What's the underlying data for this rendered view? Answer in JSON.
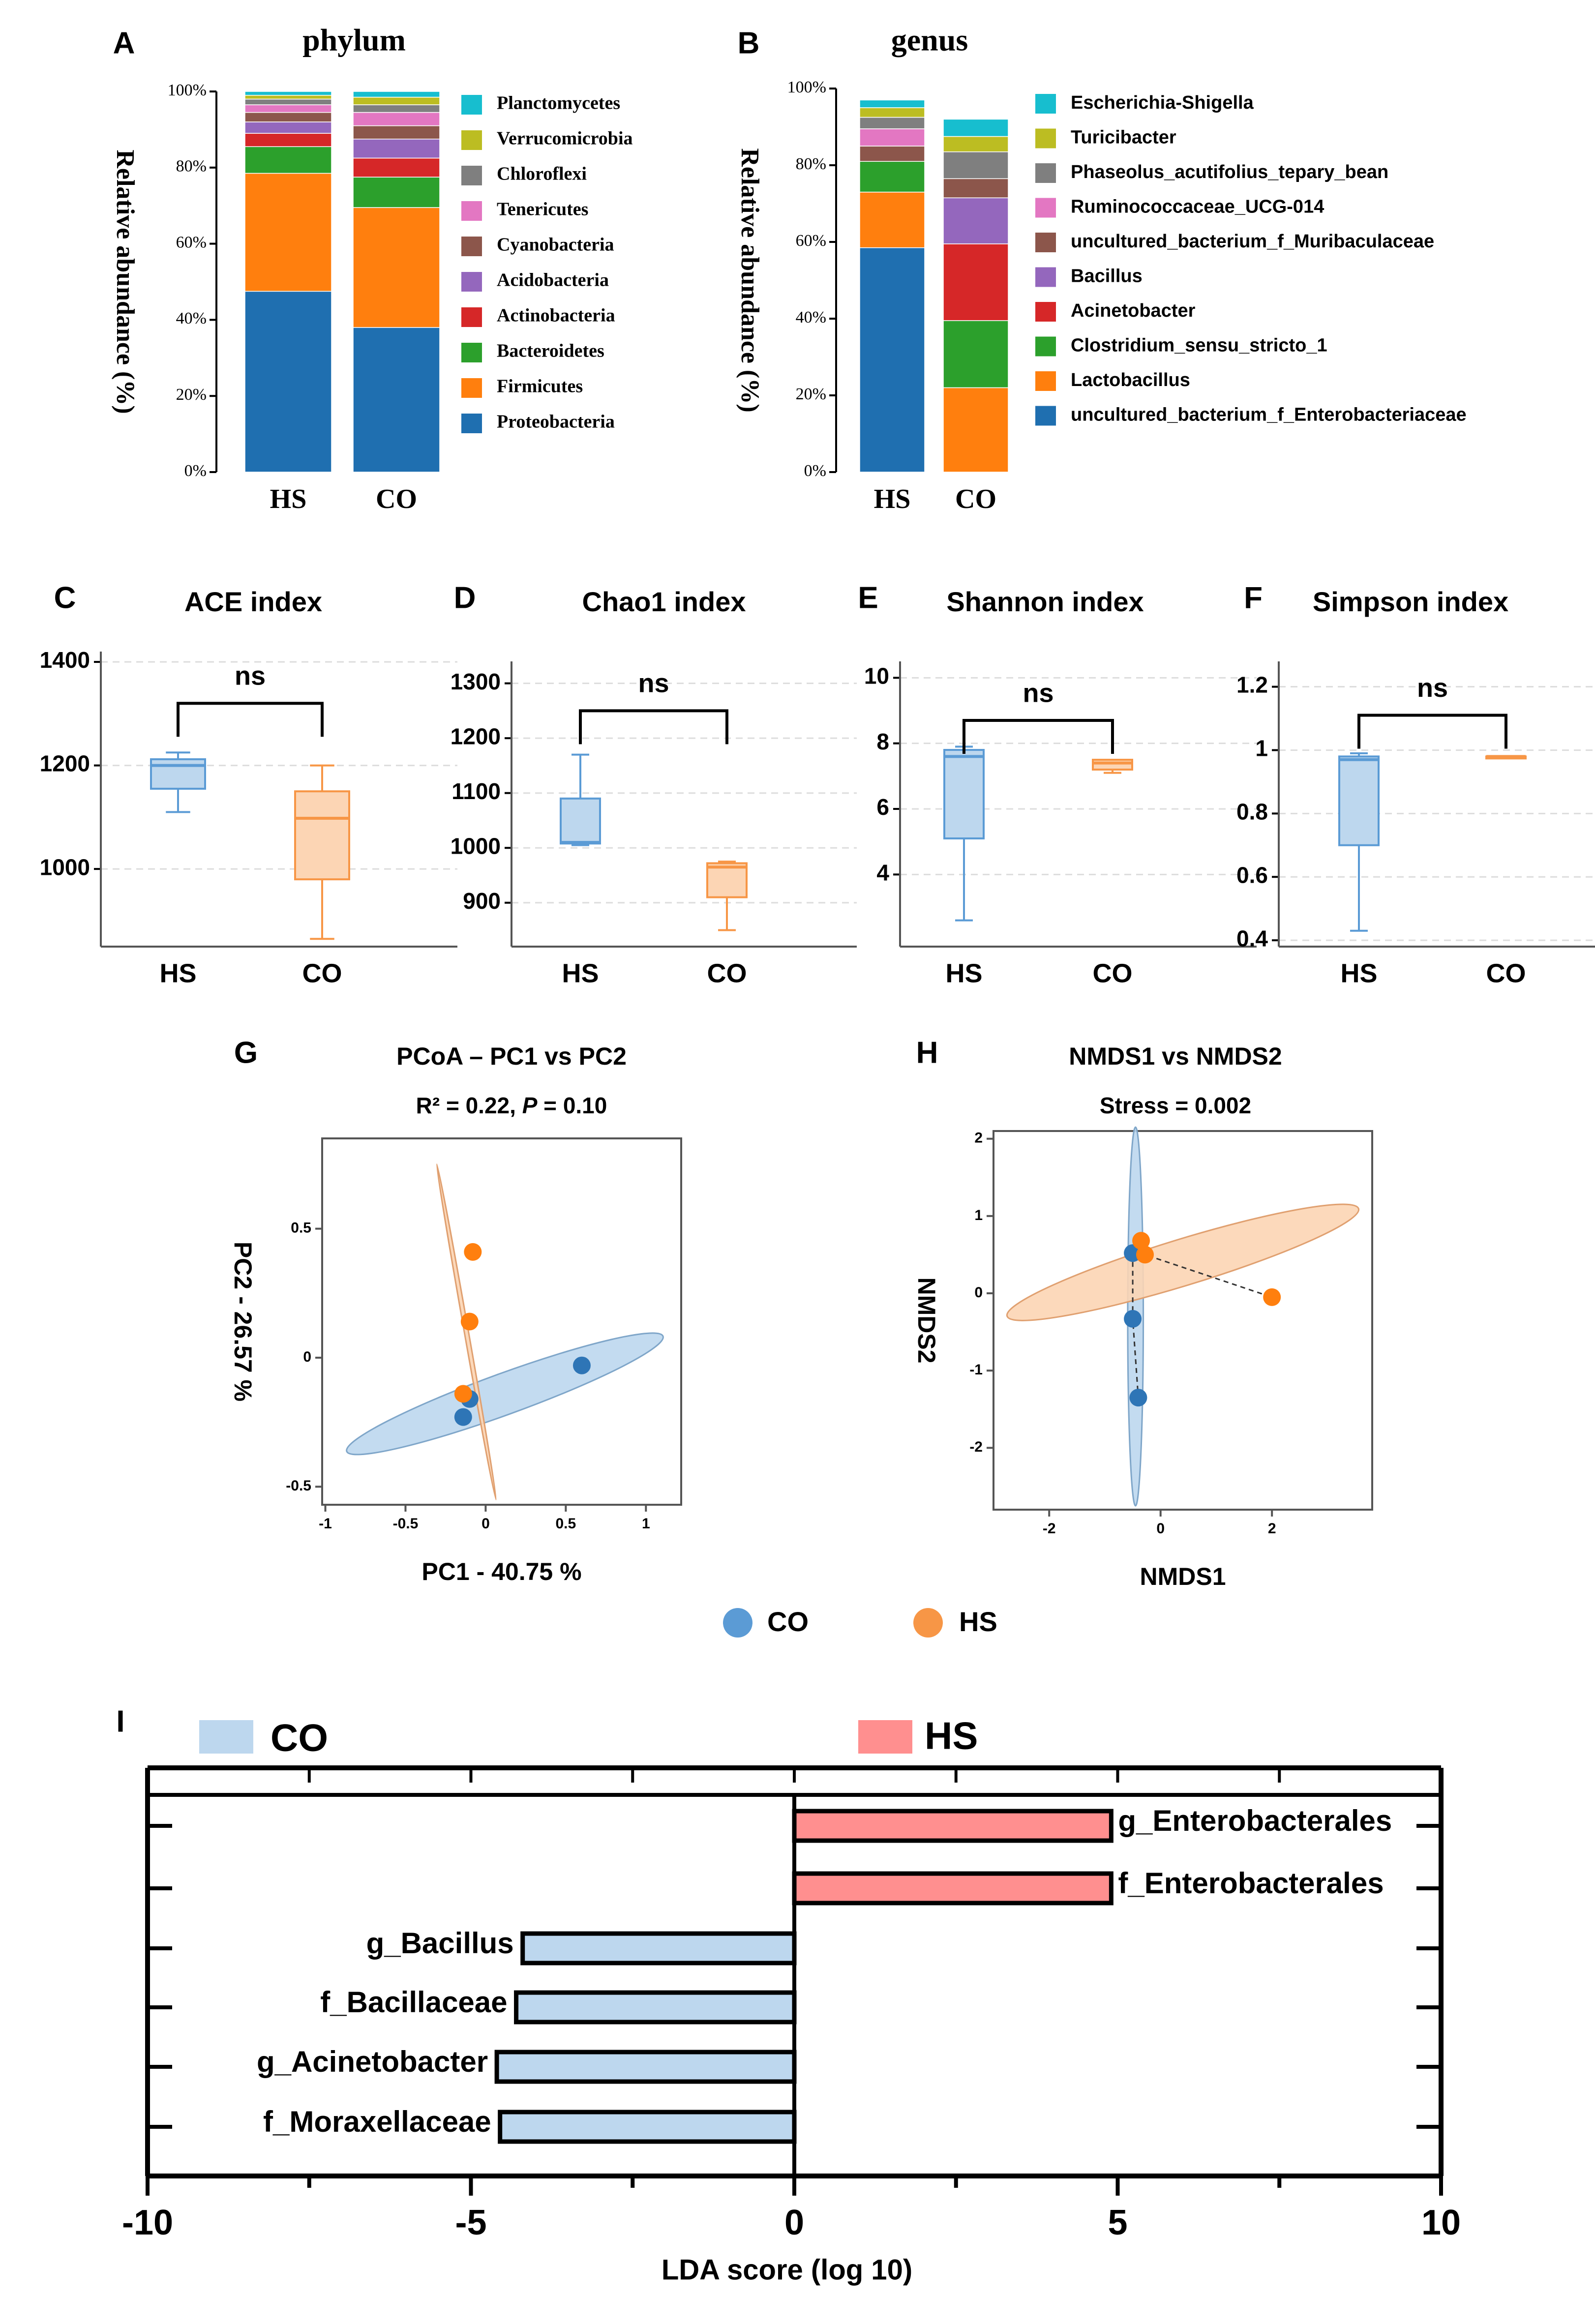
{
  "colors": {
    "black": "#000000",
    "grid": "#dddddd",
    "hs_box_fill": "#bdd7ee",
    "hs_box_line": "#5b9bd5",
    "co_box_fill": "#fcd5b4",
    "co_box_line": "#f79646",
    "co_point": "#2e75b6",
    "hs_point": "#ff7f0e",
    "lda_co": "#bdd7ee",
    "lda_hs": "#ff8f8f"
  },
  "chart_data": [
    {
      "panel": "A",
      "type": "stacked-bar",
      "title": "phylum",
      "ylabel": "Relative abundance (%)",
      "ylim": [
        0,
        100
      ],
      "yticks": [
        "0%",
        "20%",
        "40%",
        "60%",
        "80%",
        "100%"
      ],
      "categories": [
        "HS",
        "CO"
      ],
      "series": [
        {
          "name": "Proteobacteria",
          "color": "#1f6fb0",
          "values": [
            47.5,
            38
          ]
        },
        {
          "name": "Firmicutes",
          "color": "#ff7f0e",
          "values": [
            31,
            31.5
          ]
        },
        {
          "name": "Bacteroidetes",
          "color": "#2ca02c",
          "values": [
            7,
            8
          ]
        },
        {
          "name": "Actinobacteria",
          "color": "#d62728",
          "values": [
            3.5,
            5
          ]
        },
        {
          "name": "Acidobacteria",
          "color": "#9467bd",
          "values": [
            3,
            5
          ]
        },
        {
          "name": "Cyanobacteria",
          "color": "#8c564b",
          "values": [
            2.5,
            3.5
          ]
        },
        {
          "name": "Tenericutes",
          "color": "#e377c2",
          "values": [
            2,
            3.5
          ]
        },
        {
          "name": "Chloroflexi",
          "color": "#7f7f7f",
          "values": [
            1.5,
            2
          ]
        },
        {
          "name": "Verrucomicrobia",
          "color": "#bcbd22",
          "values": [
            1,
            2
          ]
        },
        {
          "name": "Planctomycetes",
          "color": "#17becf",
          "values": [
            1,
            1.5
          ]
        }
      ]
    },
    {
      "panel": "B",
      "type": "stacked-bar",
      "title": "genus",
      "ylabel": "Relative abundance (%)",
      "ylim": [
        0,
        100
      ],
      "yticks": [
        "0%",
        "20%",
        "40%",
        "60%",
        "80%",
        "100%"
      ],
      "categories": [
        "HS",
        "CO"
      ],
      "series": [
        {
          "name": "uncultured_bacterium_f_Enterobacteriaceae",
          "color": "#1f6fb0",
          "values": [
            58.5,
            0
          ]
        },
        {
          "name": "Lactobacillus",
          "color": "#ff7f0e",
          "values": [
            14.5,
            22
          ]
        },
        {
          "name": "Clostridium_sensu_stricto_1",
          "color": "#2ca02c",
          "values": [
            8,
            17.5
          ]
        },
        {
          "name": "Acinetobacter",
          "color": "#d62728",
          "values": [
            0,
            20
          ]
        },
        {
          "name": "Bacillus",
          "color": "#9467bd",
          "values": [
            0,
            12
          ]
        },
        {
          "name": "uncultured_bacterium_f_Muribaculaceae",
          "color": "#8c564b",
          "values": [
            4,
            5
          ]
        },
        {
          "name": "Ruminococcaceae_UCG-014",
          "color": "#e377c2",
          "values": [
            4.5,
            0
          ]
        },
        {
          "name": "Phaseolus_acutifolius_tepary_bean",
          "color": "#7f7f7f",
          "values": [
            3,
            7
          ]
        },
        {
          "name": "Turicibacter",
          "color": "#bcbd22",
          "values": [
            2.5,
            4
          ]
        },
        {
          "name": "Escherichia-Shigella",
          "color": "#17becf",
          "values": [
            2,
            4.5
          ]
        }
      ]
    },
    {
      "panel": "C",
      "type": "box",
      "title": "ACE index",
      "ylim": [
        850,
        1420
      ],
      "yticks": [
        1000,
        1200,
        1400
      ],
      "categories": [
        "HS",
        "CO"
      ],
      "boxes": [
        {
          "min": 1110,
          "q1": 1155,
          "median": 1200,
          "q3": 1212,
          "max": 1225
        },
        {
          "min": 865,
          "q1": 980,
          "median": 1098,
          "q3": 1150,
          "max": 1200
        }
      ],
      "sig_label": "ns",
      "sig_y": 1320
    },
    {
      "panel": "D",
      "type": "box",
      "title": "Chao1 index",
      "ylim": [
        820,
        1340
      ],
      "yticks": [
        900,
        1000,
        1100,
        1200,
        1300
      ],
      "categories": [
        "HS",
        "CO"
      ],
      "boxes": [
        {
          "min": 1005,
          "q1": 1008,
          "median": 1010,
          "q3": 1090,
          "max": 1170
        },
        {
          "min": 850,
          "q1": 910,
          "median": 965,
          "q3": 972,
          "max": 975
        }
      ],
      "sig_label": "ns",
      "sig_y": 1250
    },
    {
      "panel": "E",
      "type": "box",
      "title": "Shannon index",
      "ylim": [
        1.8,
        10.5
      ],
      "yticks": [
        4,
        6,
        8,
        10
      ],
      "categories": [
        "HS",
        "CO"
      ],
      "boxes": [
        {
          "min": 2.6,
          "q1": 5.1,
          "median": 7.6,
          "q3": 7.8,
          "max": 7.9
        },
        {
          "min": 7.1,
          "q1": 7.2,
          "median": 7.4,
          "q3": 7.5,
          "max": 7.5
        }
      ],
      "sig_label": "ns",
      "sig_y": 8.7
    },
    {
      "panel": "F",
      "type": "box",
      "title": "Simpson index",
      "ylim": [
        0.38,
        1.28
      ],
      "yticks": [
        0.4,
        0.6,
        0.8,
        1,
        1.2
      ],
      "categories": [
        "HS",
        "CO"
      ],
      "boxes": [
        {
          "min": 0.43,
          "q1": 0.7,
          "median": 0.97,
          "q3": 0.98,
          "max": 0.99
        },
        {
          "min": 0.98,
          "q1": 0.98,
          "median": 0.98,
          "q3": 0.98,
          "max": 0.98
        }
      ],
      "sig_label": "ns",
      "sig_y": 1.11
    },
    {
      "panel": "G",
      "type": "scatter",
      "title": "PCoA – PC1 vs PC2",
      "subtitle_prefix": "R² = 0.22, ",
      "subtitle_p": "P",
      "subtitle_suffix": " = 0.10",
      "xlabel": "PC1 - 40.75 %",
      "ylabel": "PC2 - 26.57 %",
      "xlim": [
        -1.02,
        1.22
      ],
      "ylim": [
        -0.57,
        0.85
      ],
      "xticks": [
        -1,
        -0.5,
        0,
        0.5,
        1
      ],
      "xtick_labels": [
        "-1",
        "-0.5",
        "0",
        "0.5",
        "1"
      ],
      "yticks": [
        -0.5,
        0,
        0.5
      ],
      "ytick_labels": [
        "-0.5",
        "0",
        "0.5"
      ],
      "series": [
        {
          "name": "CO",
          "points": [
            [
              0.6,
              -0.03
            ],
            [
              -0.1,
              -0.16
            ],
            [
              -0.14,
              -0.23
            ]
          ],
          "ellipse": {
            "cx": 0.12,
            "cy": -0.14,
            "rx": 1.05,
            "ry": 0.08,
            "angle": 20
          }
        },
        {
          "name": "HS",
          "points": [
            [
              -0.08,
              0.41
            ],
            [
              -0.1,
              0.14
            ],
            [
              -0.14,
              -0.14
            ]
          ],
          "ellipse": {
            "cx": -0.12,
            "cy": 0.1,
            "rx": 0.013,
            "ry": 0.66,
            "angle": 10
          }
        }
      ]
    },
    {
      "panel": "H",
      "type": "scatter",
      "title": "NMDS1 vs NMDS2",
      "subtitle": "Stress = 0.002",
      "xlabel": "NMDS1",
      "ylabel": "NMDS2",
      "xlim": [
        -3,
        3.8
      ],
      "ylim": [
        -2.8,
        2.1
      ],
      "xticks": [
        -2,
        0,
        2
      ],
      "xtick_labels": [
        "-2",
        "0",
        "2"
      ],
      "yticks": [
        -2,
        -1,
        0,
        1,
        2
      ],
      "ytick_labels": [
        "-2",
        "-1",
        "0",
        "1",
        "2"
      ],
      "series": [
        {
          "name": "CO",
          "points": [
            [
              -0.5,
              0.52
            ],
            [
              -0.5,
              -0.33
            ],
            [
              -0.4,
              -1.35
            ]
          ],
          "ellipse": {
            "cx": -0.45,
            "cy": -0.3,
            "rx": 0.14,
            "ry": 2.45,
            "angle": 0
          }
        },
        {
          "name": "HS",
          "points": [
            [
              -0.35,
              0.68
            ],
            [
              -0.28,
              0.5
            ],
            [
              2.0,
              -0.05
            ]
          ],
          "ellipse": {
            "cx": 0.4,
            "cy": 0.4,
            "rx": 3.3,
            "ry": 0.3,
            "angle": 17
          }
        }
      ]
    },
    {
      "panel": "I",
      "type": "bar",
      "orientation": "horizontal",
      "xlabel": "LDA  score (log 10)",
      "xlim": [
        -10,
        10
      ],
      "xticks": [
        -10,
        -5,
        0,
        5,
        10
      ],
      "xtick_labels": [
        "-10",
        "-5",
        "0",
        "5",
        "10"
      ],
      "legend": [
        "CO",
        "HS"
      ],
      "categories": [
        "g_Enterobacterales",
        "f_Enterobacterales",
        "g_Bacillus",
        "f_Bacillaceae",
        "g_Acinetobacter",
        "f_Moraxellaceae"
      ],
      "values": [
        4.9,
        4.9,
        -4.2,
        -4.3,
        -4.6,
        -4.55
      ],
      "groups": [
        "HS",
        "HS",
        "CO",
        "CO",
        "CO",
        "CO"
      ]
    }
  ],
  "shared_legend": [
    "CO",
    "HS"
  ]
}
